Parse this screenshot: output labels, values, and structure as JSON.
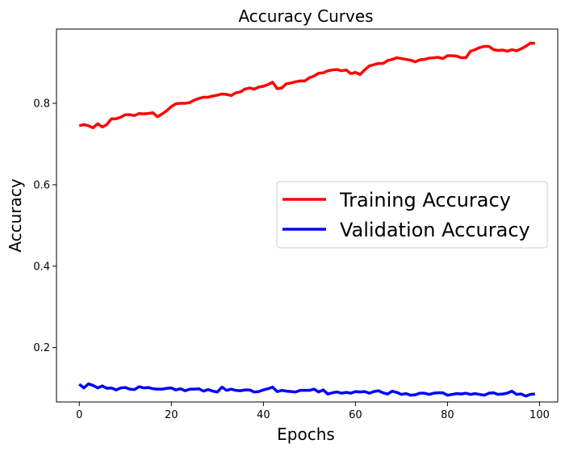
{
  "chart_data": {
    "type": "line",
    "title": "Accuracy Curves",
    "xlabel": "Epochs",
    "ylabel": "Accuracy",
    "xlim": [
      -4.95,
      103.95
    ],
    "ylim": [
      0.0665,
      0.9825
    ],
    "xticks": [
      0,
      20,
      40,
      60,
      80,
      100
    ],
    "yticks": [
      0.2,
      0.4,
      0.6,
      0.8
    ],
    "grid": false,
    "legend_position": "center-right",
    "series": [
      {
        "name": "Training Accuracy",
        "color": "#ff0000",
        "x": [
          0,
          1,
          2,
          3,
          4,
          5,
          6,
          7,
          8,
          9,
          10,
          11,
          12,
          13,
          14,
          15,
          16,
          17,
          18,
          19,
          20,
          21,
          22,
          23,
          24,
          25,
          26,
          27,
          28,
          29,
          30,
          31,
          32,
          33,
          34,
          35,
          36,
          37,
          38,
          39,
          40,
          41,
          42,
          43,
          44,
          45,
          46,
          47,
          48,
          49,
          50,
          51,
          52,
          53,
          54,
          55,
          56,
          57,
          58,
          59,
          60,
          61,
          62,
          63,
          64,
          65,
          66,
          67,
          68,
          69,
          70,
          71,
          72,
          73,
          74,
          75,
          76,
          77,
          78,
          79,
          80,
          81,
          82,
          83,
          84,
          85,
          86,
          87,
          88,
          89,
          90,
          91,
          92,
          93,
          94,
          95,
          96,
          97,
          98,
          99
        ],
        "y": [
          0.745,
          0.748,
          0.745,
          0.74,
          0.75,
          0.742,
          0.748,
          0.762,
          0.762,
          0.766,
          0.772,
          0.772,
          0.77,
          0.775,
          0.774,
          0.775,
          0.777,
          0.767,
          0.774,
          0.782,
          0.792,
          0.799,
          0.8,
          0.8,
          0.802,
          0.808,
          0.812,
          0.815,
          0.815,
          0.818,
          0.82,
          0.823,
          0.822,
          0.819,
          0.826,
          0.828,
          0.835,
          0.838,
          0.835,
          0.84,
          0.842,
          0.846,
          0.852,
          0.836,
          0.838,
          0.848,
          0.85,
          0.853,
          0.855,
          0.855,
          0.863,
          0.867,
          0.874,
          0.875,
          0.88,
          0.882,
          0.883,
          0.88,
          0.882,
          0.873,
          0.876,
          0.871,
          0.882,
          0.892,
          0.895,
          0.898,
          0.898,
          0.905,
          0.908,
          0.912,
          0.91,
          0.908,
          0.906,
          0.902,
          0.907,
          0.908,
          0.911,
          0.912,
          0.913,
          0.91,
          0.917,
          0.917,
          0.916,
          0.912,
          0.912,
          0.928,
          0.932,
          0.937,
          0.94,
          0.94,
          0.932,
          0.93,
          0.931,
          0.928,
          0.932,
          0.929,
          0.934,
          0.94,
          0.948,
          0.947
        ]
      },
      {
        "name": "Validation Accuracy",
        "color": "#0000ff",
        "x": [
          0,
          1,
          2,
          3,
          4,
          5,
          6,
          7,
          8,
          9,
          10,
          11,
          12,
          13,
          14,
          15,
          16,
          17,
          18,
          19,
          20,
          21,
          22,
          23,
          24,
          25,
          26,
          27,
          28,
          29,
          30,
          31,
          32,
          33,
          34,
          35,
          36,
          37,
          38,
          39,
          40,
          41,
          42,
          43,
          44,
          45,
          46,
          47,
          48,
          49,
          50,
          51,
          52,
          53,
          54,
          55,
          56,
          57,
          58,
          59,
          60,
          61,
          62,
          63,
          64,
          65,
          66,
          67,
          68,
          69,
          70,
          71,
          72,
          73,
          74,
          75,
          76,
          77,
          78,
          79,
          80,
          81,
          82,
          83,
          84,
          85,
          86,
          87,
          88,
          89,
          90,
          91,
          92,
          93,
          94,
          95,
          96,
          97,
          98,
          99
        ],
        "y": [
          0.11,
          0.101,
          0.111,
          0.107,
          0.101,
          0.106,
          0.1,
          0.101,
          0.096,
          0.101,
          0.102,
          0.098,
          0.097,
          0.104,
          0.101,
          0.102,
          0.099,
          0.098,
          0.098,
          0.1,
          0.101,
          0.096,
          0.099,
          0.094,
          0.098,
          0.098,
          0.099,
          0.093,
          0.097,
          0.093,
          0.091,
          0.103,
          0.095,
          0.098,
          0.095,
          0.094,
          0.096,
          0.096,
          0.091,
          0.092,
          0.096,
          0.099,
          0.103,
          0.092,
          0.095,
          0.093,
          0.092,
          0.091,
          0.095,
          0.095,
          0.095,
          0.098,
          0.091,
          0.096,
          0.086,
          0.089,
          0.091,
          0.088,
          0.09,
          0.088,
          0.092,
          0.091,
          0.092,
          0.088,
          0.092,
          0.094,
          0.089,
          0.086,
          0.093,
          0.09,
          0.085,
          0.087,
          0.083,
          0.084,
          0.088,
          0.088,
          0.085,
          0.088,
          0.089,
          0.089,
          0.083,
          0.085,
          0.087,
          0.086,
          0.088,
          0.085,
          0.087,
          0.085,
          0.083,
          0.088,
          0.089,
          0.085,
          0.086,
          0.088,
          0.093,
          0.085,
          0.086,
          0.081,
          0.085,
          0.086
        ]
      }
    ]
  }
}
